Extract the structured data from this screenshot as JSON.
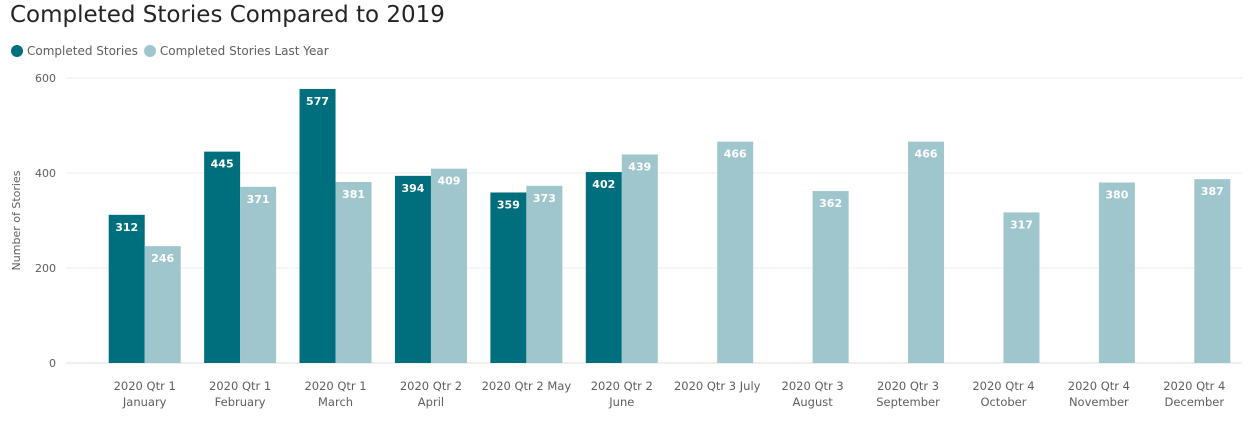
{
  "title": "Completed Stories Compared to 2019",
  "legend": {
    "items": [
      {
        "label": "Completed Stories",
        "color": "#006f7d"
      },
      {
        "label": "Completed Stories Last Year",
        "color": "#9fc6cc"
      }
    ]
  },
  "chart_data": {
    "type": "bar",
    "title": "Completed Stories Compared to 2019",
    "xlabel": "",
    "ylabel": "Number of Stories",
    "ylim": [
      0,
      600
    ],
    "yticks": [
      0,
      200,
      400,
      600
    ],
    "grid": true,
    "legend_position": "top-left",
    "categories": [
      [
        "2020 Qtr 1",
        "January"
      ],
      [
        "2020 Qtr 1",
        "February"
      ],
      [
        "2020 Qtr 1",
        "March"
      ],
      [
        "2020 Qtr 2",
        "April"
      ],
      [
        "2020 Qtr 2 May"
      ],
      [
        "2020 Qtr 2",
        "June"
      ],
      [
        "2020 Qtr 3 July"
      ],
      [
        "2020 Qtr 3",
        "August"
      ],
      [
        "2020 Qtr 3",
        "September"
      ],
      [
        "2020 Qtr 4",
        "October"
      ],
      [
        "2020 Qtr 4",
        "November"
      ],
      [
        "2020 Qtr 4",
        "December"
      ]
    ],
    "series": [
      {
        "name": "Completed Stories",
        "color": "#006f7d",
        "values": [
          312,
          445,
          577,
          394,
          359,
          402,
          null,
          null,
          null,
          null,
          null,
          null
        ]
      },
      {
        "name": "Completed Stories Last Year",
        "color": "#9fc6cc",
        "values": [
          246,
          371,
          381,
          409,
          373,
          439,
          466,
          362,
          466,
          317,
          380,
          387
        ]
      }
    ]
  }
}
